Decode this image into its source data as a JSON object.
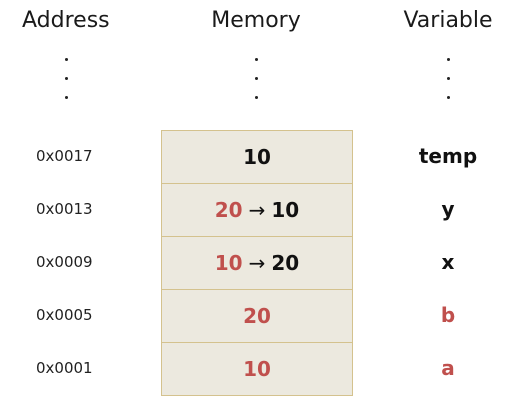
{
  "headers": {
    "address": "Address",
    "memory": "Memory",
    "variable": "Variable"
  },
  "ellipsis": ".",
  "arrow": "→",
  "colors": {
    "changed_value": "#c0504d",
    "cell_background": "#ece9df",
    "cell_border": "#d4c28e",
    "text": "#111111"
  },
  "rows": [
    {
      "address": "0x0017",
      "old_value": "",
      "value": "10",
      "variable": "temp",
      "value_color": "black",
      "variable_color": "black"
    },
    {
      "address": "0x0013",
      "old_value": "20",
      "value": "10",
      "variable": "y",
      "value_color": "black",
      "variable_color": "black"
    },
    {
      "address": "0x0009",
      "old_value": "10",
      "value": "20",
      "variable": "x",
      "value_color": "black",
      "variable_color": "black"
    },
    {
      "address": "0x0005",
      "old_value": "",
      "value": "20",
      "variable": "b",
      "value_color": "red",
      "variable_color": "red"
    },
    {
      "address": "0x0001",
      "old_value": "",
      "value": "10",
      "variable": "a",
      "value_color": "red",
      "variable_color": "red"
    }
  ]
}
